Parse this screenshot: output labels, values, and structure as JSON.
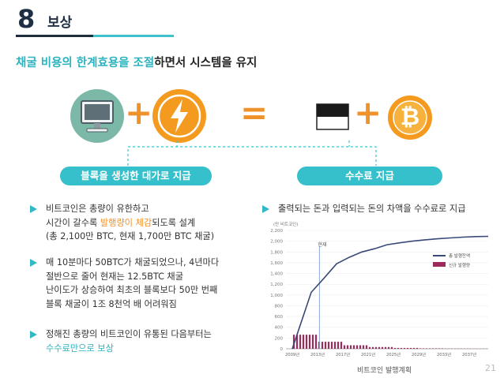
{
  "section": {
    "number": "8",
    "title": "보상"
  },
  "headline": {
    "part1": "채굴 비용의 한계효용을 조절",
    "part2": "하면서 시스템을 유지"
  },
  "equation": {
    "plus_symbol": "+",
    "equals_symbol": "=",
    "coin_symbol": "₿"
  },
  "pills": {
    "left": "블록을 생성한 대가로 지급",
    "right": "수수료 지급"
  },
  "left_bullets": [
    {
      "lines": [
        {
          "pre": "비트코인은 총량이 유한하고",
          "hi": "",
          "post": ""
        },
        {
          "pre": "시간이 갈수록 ",
          "hi": "발행량이 체감",
          "post": "되도록 설계"
        },
        {
          "pre": "(총 2,100만 BTC, 현재 1,700만 BTC 채굴)",
          "hi": "",
          "post": ""
        }
      ]
    },
    {
      "lines": [
        {
          "pre": "매 10분마다 50BTC가 채굴되었으나, 4년마다",
          "hi": "",
          "post": ""
        },
        {
          "pre": "절반으로 줄어 현재는 12.5BTC 채굴",
          "hi": "",
          "post": ""
        },
        {
          "pre": "난이도가 상승하여 최초의 블록보다 50만 번째",
          "hi": "",
          "post": ""
        },
        {
          "pre": "블록 채굴이 1조 8천억 배 어려워짐",
          "hi": "",
          "post": ""
        }
      ]
    },
    {
      "lines": [
        {
          "pre": "정해진 총량의 비트코인이 유통된 다음부터는",
          "hi": "",
          "post": ""
        },
        {
          "pre": "",
          "hi": "수수료만으로 보상",
          "post": ""
        }
      ]
    }
  ],
  "right_bullet": "출력되는 돈과 입력되는 돈의 차액을 수수료로 지급",
  "chart_data": {
    "type": "bar+line",
    "ylabel": "(만 비트코인)",
    "ylim": [
      0,
      2200
    ],
    "yticks": [
      "0",
      "200",
      "400",
      "600",
      "800",
      "1,000",
      "1,200",
      "1,400",
      "1,600",
      "1,800",
      "2,000",
      "2,200"
    ],
    "categories": [
      "2009년",
      "2013년",
      "2017년",
      "2021년",
      "2025년",
      "2029년",
      "2033년",
      "2037년"
    ],
    "annotation": "현재",
    "series": [
      {
        "name": "총 발행잔액",
        "type": "line",
        "color": "#3a4a78",
        "x": [
          2009,
          2012,
          2014,
          2016,
          2018,
          2020,
          2022,
          2024,
          2026,
          2028,
          2030,
          2032,
          2034,
          2036,
          2038,
          2040
        ],
        "values": [
          0,
          1050,
          1310,
          1580,
          1700,
          1800,
          1860,
          1935,
          1970,
          2000,
          2025,
          2045,
          2060,
          2075,
          2085,
          2090
        ]
      },
      {
        "name": "신규 발행량",
        "type": "bar",
        "color": "#9c2a5a",
        "x": [
          2009,
          2009.5,
          2010,
          2010.5,
          2011,
          2011.5,
          2012,
          2012.5,
          2013,
          2013.5,
          2014,
          2014.5,
          2015,
          2015.5,
          2016,
          2016.5,
          2017,
          2017.5,
          2018,
          2018.5,
          2019,
          2019.5,
          2020,
          2020.5,
          2021,
          2021.5,
          2022,
          2022.5,
          2023,
          2023.5,
          2024,
          2024.5,
          2025,
          2025.5,
          2026,
          2026.5,
          2027,
          2027.5,
          2028,
          2028.5,
          2029,
          2029.5,
          2030,
          2030.5,
          2031,
          2031.5,
          2032,
          2032.5,
          2033,
          2033.5,
          2034,
          2034.5,
          2035,
          2035.5,
          2036,
          2036.5,
          2037,
          2037.5,
          2038,
          2038.5,
          2039,
          2039.5
        ],
        "values": [
          262,
          262,
          262,
          262,
          262,
          262,
          262,
          262,
          131,
          131,
          131,
          131,
          131,
          131,
          131,
          131,
          66,
          66,
          66,
          66,
          66,
          66,
          66,
          66,
          33,
          33,
          33,
          33,
          33,
          33,
          33,
          33,
          16,
          16,
          16,
          16,
          16,
          16,
          16,
          16,
          8,
          8,
          8,
          8,
          8,
          8,
          8,
          8,
          4,
          4,
          4,
          4,
          4,
          4,
          4,
          4,
          2,
          2,
          2,
          2,
          2,
          2
        ]
      }
    ]
  },
  "footer": {
    "source": "비트코인 발행계획",
    "page": "21"
  }
}
